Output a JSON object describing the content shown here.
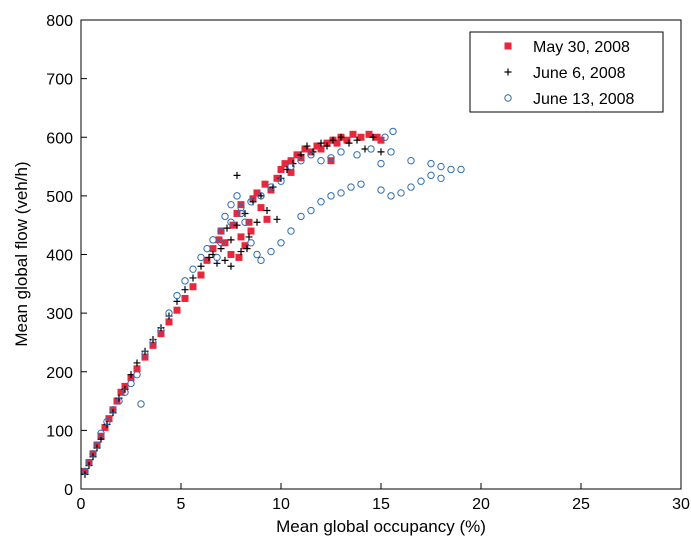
{
  "chart_data": {
    "type": "scatter",
    "title": "",
    "xlabel": "Mean global occupancy (%)",
    "ylabel": "Mean global flow (veh/h)",
    "xlim": [
      0,
      30
    ],
    "ylim": [
      0,
      800
    ],
    "xticks": [
      0,
      5,
      10,
      15,
      20,
      25,
      30
    ],
    "yticks": [
      0,
      100,
      200,
      300,
      400,
      500,
      600,
      700,
      800
    ],
    "grid": false,
    "legend_position": "top-right",
    "series": [
      {
        "name": "May 30, 2008",
        "marker": "square",
        "color": "#e8273c",
        "points": [
          [
            0.2,
            30
          ],
          [
            0.4,
            45
          ],
          [
            0.6,
            60
          ],
          [
            0.8,
            75
          ],
          [
            1.0,
            90
          ],
          [
            1.2,
            105
          ],
          [
            1.4,
            120
          ],
          [
            1.6,
            135
          ],
          [
            1.8,
            150
          ],
          [
            2.0,
            165
          ],
          [
            2.2,
            175
          ],
          [
            2.5,
            190
          ],
          [
            2.8,
            205
          ],
          [
            3.2,
            225
          ],
          [
            3.6,
            245
          ],
          [
            4.0,
            265
          ],
          [
            4.4,
            285
          ],
          [
            4.8,
            305
          ],
          [
            5.2,
            325
          ],
          [
            5.6,
            345
          ],
          [
            6.0,
            365
          ],
          [
            6.3,
            390
          ],
          [
            6.6,
            410
          ],
          [
            6.9,
            425
          ],
          [
            7.0,
            440
          ],
          [
            7.2,
            420
          ],
          [
            7.5,
            400
          ],
          [
            7.6,
            450
          ],
          [
            7.8,
            470
          ],
          [
            8.0,
            485
          ],
          [
            8.0,
            430
          ],
          [
            8.2,
            415
          ],
          [
            8.4,
            455
          ],
          [
            8.6,
            495
          ],
          [
            8.8,
            505
          ],
          [
            9.0,
            480
          ],
          [
            9.2,
            520
          ],
          [
            9.5,
            510
          ],
          [
            9.8,
            530
          ],
          [
            10.0,
            545
          ],
          [
            10.2,
            555
          ],
          [
            10.5,
            560
          ],
          [
            10.8,
            570
          ],
          [
            11.0,
            565
          ],
          [
            11.2,
            580
          ],
          [
            11.5,
            575
          ],
          [
            11.8,
            585
          ],
          [
            12.0,
            580
          ],
          [
            12.3,
            590
          ],
          [
            12.6,
            595
          ],
          [
            12.8,
            590
          ],
          [
            13.0,
            600
          ],
          [
            13.3,
            595
          ],
          [
            13.6,
            605
          ],
          [
            14.0,
            600
          ],
          [
            14.4,
            605
          ],
          [
            14.8,
            600
          ],
          [
            15.0,
            595
          ],
          [
            12.5,
            560
          ],
          [
            10.5,
            540
          ],
          [
            9.3,
            460
          ],
          [
            8.5,
            440
          ],
          [
            7.9,
            395
          ]
        ]
      },
      {
        "name": "June 6, 2008",
        "marker": "plus",
        "color": "#000000",
        "points": [
          [
            0.2,
            25
          ],
          [
            0.4,
            40
          ],
          [
            0.6,
            55
          ],
          [
            0.8,
            70
          ],
          [
            1.0,
            85
          ],
          [
            1.3,
            110
          ],
          [
            1.6,
            130
          ],
          [
            1.9,
            155
          ],
          [
            2.2,
            170
          ],
          [
            2.5,
            195
          ],
          [
            2.8,
            215
          ],
          [
            3.2,
            235
          ],
          [
            3.6,
            255
          ],
          [
            4.0,
            275
          ],
          [
            4.4,
            295
          ],
          [
            4.8,
            320
          ],
          [
            5.2,
            340
          ],
          [
            5.6,
            360
          ],
          [
            6.0,
            380
          ],
          [
            6.4,
            395
          ],
          [
            6.8,
            385
          ],
          [
            7.0,
            410
          ],
          [
            7.2,
            390
          ],
          [
            7.5,
            380
          ],
          [
            7.5,
            425
          ],
          [
            7.8,
            450
          ],
          [
            7.8,
            535
          ],
          [
            8.0,
            405
          ],
          [
            8.2,
            470
          ],
          [
            8.4,
            430
          ],
          [
            8.6,
            490
          ],
          [
            8.8,
            455
          ],
          [
            9.0,
            500
          ],
          [
            9.3,
            475
          ],
          [
            9.6,
            515
          ],
          [
            10.0,
            530
          ],
          [
            10.3,
            545
          ],
          [
            10.6,
            555
          ],
          [
            11.0,
            570
          ],
          [
            11.3,
            585
          ],
          [
            11.6,
            575
          ],
          [
            12.0,
            590
          ],
          [
            12.3,
            585
          ],
          [
            12.6,
            595
          ],
          [
            13.0,
            600
          ],
          [
            13.4,
            590
          ],
          [
            13.8,
            595
          ],
          [
            14.2,
            580
          ],
          [
            14.6,
            600
          ],
          [
            15.0,
            575
          ],
          [
            9.8,
            460
          ],
          [
            8.3,
            410
          ],
          [
            7.3,
            445
          ],
          [
            6.6,
            400
          ]
        ]
      },
      {
        "name": "June 13, 2008",
        "marker": "circle",
        "color": "#2f6db5",
        "points": [
          [
            0.2,
            30
          ],
          [
            0.4,
            45
          ],
          [
            0.6,
            60
          ],
          [
            0.8,
            75
          ],
          [
            1.0,
            95
          ],
          [
            1.3,
            115
          ],
          [
            1.6,
            135
          ],
          [
            1.9,
            150
          ],
          [
            2.2,
            165
          ],
          [
            2.5,
            180
          ],
          [
            2.8,
            195
          ],
          [
            3.0,
            145
          ],
          [
            3.2,
            230
          ],
          [
            3.6,
            250
          ],
          [
            4.0,
            270
          ],
          [
            4.4,
            300
          ],
          [
            4.8,
            330
          ],
          [
            5.2,
            355
          ],
          [
            5.6,
            375
          ],
          [
            6.0,
            395
          ],
          [
            6.3,
            410
          ],
          [
            6.6,
            425
          ],
          [
            7.0,
            440
          ],
          [
            7.2,
            465
          ],
          [
            7.5,
            485
          ],
          [
            7.8,
            500
          ],
          [
            8.0,
            480
          ],
          [
            8.2,
            455
          ],
          [
            8.5,
            420
          ],
          [
            8.8,
            400
          ],
          [
            9.0,
            390
          ],
          [
            9.5,
            405
          ],
          [
            10.0,
            420
          ],
          [
            10.5,
            440
          ],
          [
            11.0,
            465
          ],
          [
            11.5,
            475
          ],
          [
            12.0,
            490
          ],
          [
            12.5,
            500
          ],
          [
            13.0,
            505
          ],
          [
            13.5,
            515
          ],
          [
            14.0,
            520
          ],
          [
            15.0,
            510
          ],
          [
            15.5,
            500
          ],
          [
            16.0,
            505
          ],
          [
            16.5,
            515
          ],
          [
            17.0,
            525
          ],
          [
            17.5,
            535
          ],
          [
            18.0,
            530
          ],
          [
            18.5,
            545
          ],
          [
            19.0,
            545
          ],
          [
            16.5,
            560
          ],
          [
            17.5,
            555
          ],
          [
            18.0,
            550
          ],
          [
            15.0,
            555
          ],
          [
            15.5,
            575
          ],
          [
            15.6,
            610
          ],
          [
            15.2,
            600
          ],
          [
            14.5,
            580
          ],
          [
            13.8,
            570
          ],
          [
            13.0,
            575
          ],
          [
            12.5,
            565
          ],
          [
            12.0,
            560
          ],
          [
            11.5,
            570
          ],
          [
            11.0,
            560
          ],
          [
            10.5,
            550
          ],
          [
            10.0,
            525
          ],
          [
            9.5,
            515
          ],
          [
            9.0,
            500
          ],
          [
            8.5,
            490
          ],
          [
            8.0,
            470
          ],
          [
            7.5,
            455
          ],
          [
            7.0,
            420
          ],
          [
            6.8,
            395
          ]
        ]
      }
    ]
  }
}
